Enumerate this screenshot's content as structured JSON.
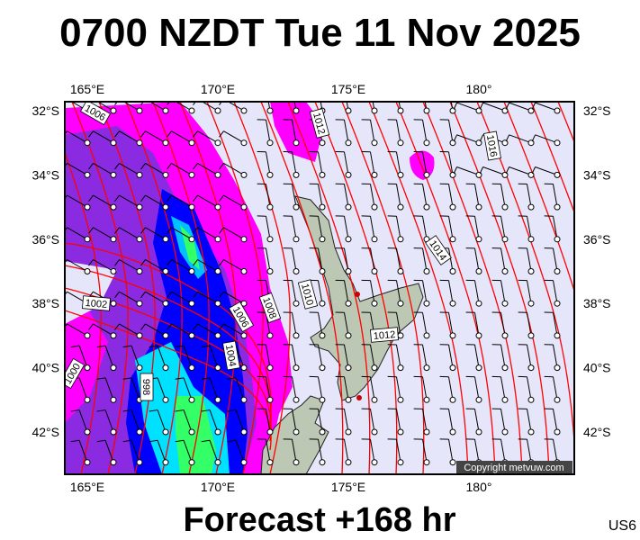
{
  "title": "0700 NZDT Tue 11 Nov 2025",
  "footer": "Forecast +168 hr",
  "model_code": "US6",
  "copyright": "Copyright metvuw.com",
  "lon_labels": [
    "165°E",
    "170°E",
    "175°E",
    "180°"
  ],
  "lat_labels": [
    "32°S",
    "34°S",
    "36°S",
    "38°S",
    "40°S",
    "42°S"
  ],
  "isobar_labels": [
    "1006",
    "1012",
    "1016",
    "1014",
    "1010",
    "1008",
    "1006",
    "1002",
    "1004",
    "998",
    "1000",
    "1012"
  ],
  "colors": {
    "background": "#e6e6fa",
    "isobar": "#ff0000",
    "precip_light": "#ff00ff",
    "precip_mid": "#8800ff",
    "precip_heavy": "#0000ff",
    "precip_peak": "#00ff66",
    "land": "#b8c4b0"
  }
}
